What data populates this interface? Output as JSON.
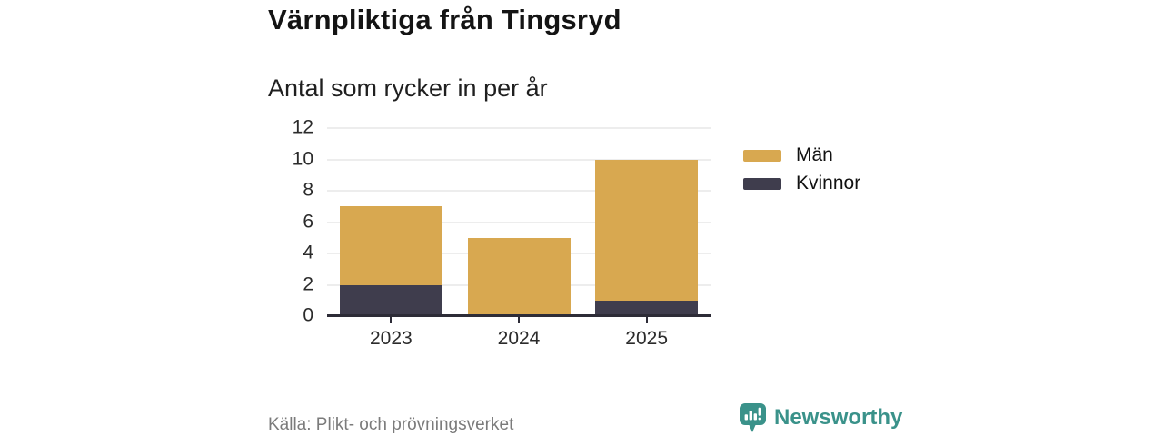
{
  "header": {
    "title": "Värnpliktiga från Tingsryd",
    "subtitle": "Antal som rycker in per år"
  },
  "chart_data": {
    "type": "bar",
    "stacked": true,
    "title": "Värnpliktiga från Tingsryd",
    "subtitle": "Antal som rycker in per år",
    "categories": [
      "2023",
      "2024",
      "2025"
    ],
    "series": [
      {
        "name": "Kvinnor",
        "color": "#3F3D4D",
        "values": [
          2,
          0,
          1
        ]
      },
      {
        "name": "Män",
        "color": "#D8A850",
        "values": [
          5,
          5,
          9
        ]
      }
    ],
    "stack_totals": [
      7,
      5,
      10
    ],
    "ylim": [
      0,
      12
    ],
    "yticks": [
      0,
      2,
      4,
      6,
      8,
      10,
      12
    ],
    "grid": true,
    "legend_position": "right",
    "legend_order": [
      "Män",
      "Kvinnor"
    ]
  },
  "legend": {
    "items": [
      {
        "label": "Män",
        "color": "#D8A850"
      },
      {
        "label": "Kvinnor",
        "color": "#3F3D4D"
      }
    ]
  },
  "footer": {
    "source": "Källa: Plikt- och prövningsverket",
    "brand": "Newsworthy"
  },
  "colors": {
    "men_gold": "#D8A850",
    "women_dark": "#3F3D4D",
    "brand_teal": "#3A928A",
    "grid": "#DBDBDB",
    "axis": "#2D2C37",
    "muted_text": "#7B7B7B"
  }
}
